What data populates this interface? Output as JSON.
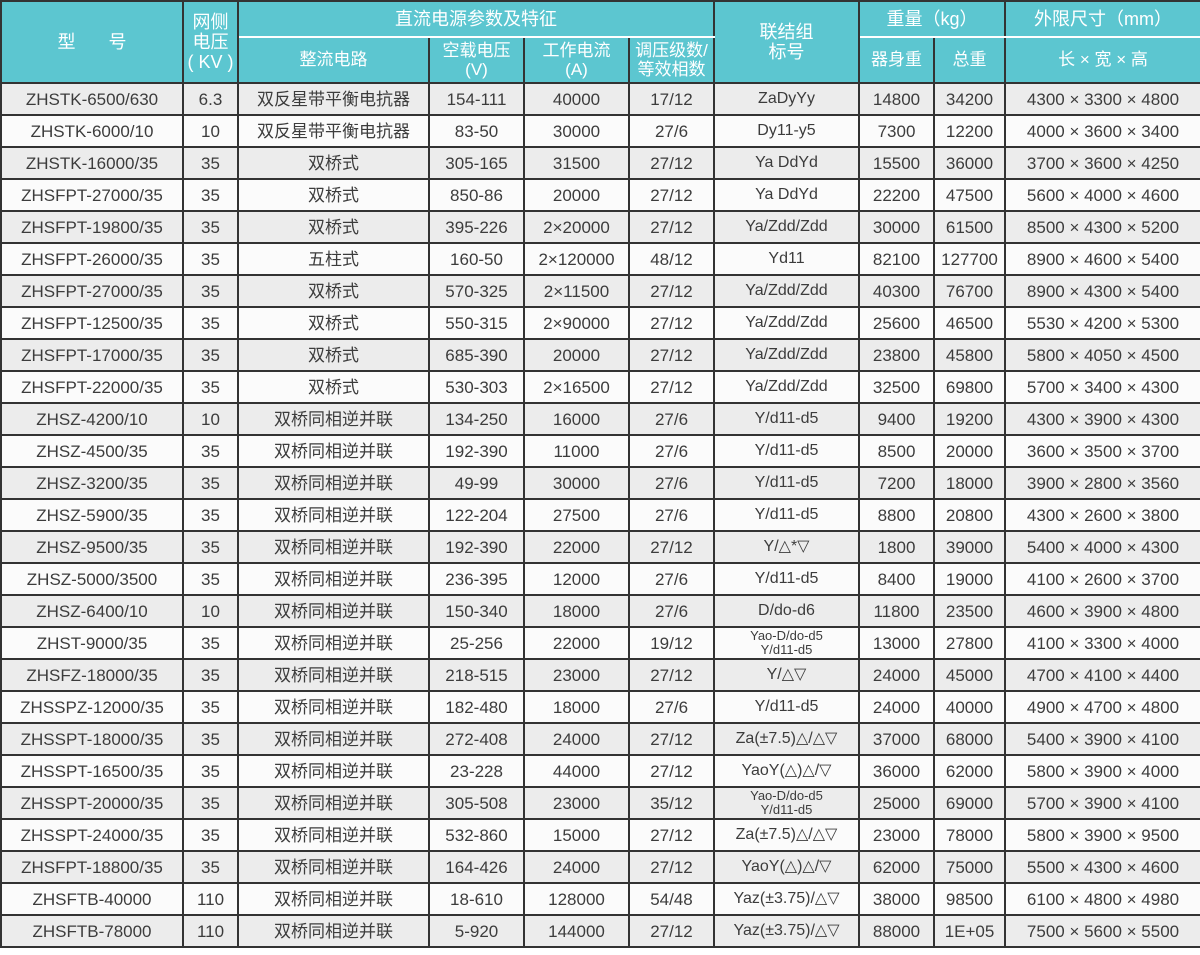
{
  "colors": {
    "header_bg": "#5cc6d0",
    "header_text": "#ffffff",
    "border": "#333333",
    "row_odd_bg": "#ececec",
    "row_even_bg": "#fbfbfb",
    "cell_text": "#3c3c3c"
  },
  "headers": {
    "model": "型  号",
    "grid_voltage": "网侧\n电压\n( KV )",
    "dc_params_group": "直流电源参数及特征",
    "rectifier": "整流电路",
    "noload_voltage": "空载电压\n(V)",
    "working_current": "工作电流\n(A)",
    "regulation": "调压级数/\n等效相数",
    "connection": "联结组\n标号",
    "weight_group": "重量（kg）",
    "body_weight": "器身重",
    "total_weight": "总重",
    "dimensions_group": "外限尺寸（mm）",
    "dimensions": "长 × 宽 × 高"
  },
  "column_keys": [
    "model",
    "grid-voltage",
    "rectifier-circuit",
    "noload-voltage",
    "working-current",
    "regulation-stages",
    "connection",
    "body-weight",
    "total-weight",
    "dimensions"
  ],
  "rows": [
    [
      "ZHSTK-6500/630",
      "6.3",
      "双反星带平衡电抗器",
      "154-111",
      "40000",
      "17/12",
      "ZaDyYy",
      "14800",
      "34200",
      "4300 × 3300 × 4800"
    ],
    [
      "ZHSTK-6000/10",
      "10",
      "双反星带平衡电抗器",
      "83-50",
      "30000",
      "27/6",
      "Dy11-y5",
      "7300",
      "12200",
      "4000 × 3600 × 3400"
    ],
    [
      "ZHSTK-16000/35",
      "35",
      "双桥式",
      "305-165",
      "31500",
      "27/12",
      "Ya DdYd",
      "15500",
      "36000",
      "3700 × 3600 × 4250"
    ],
    [
      "ZHSFPT-27000/35",
      "35",
      "双桥式",
      "850-86",
      "20000",
      "27/12",
      "Ya DdYd",
      "22200",
      "47500",
      "5600 × 4000 × 4600"
    ],
    [
      "ZHSFPT-19800/35",
      "35",
      "双桥式",
      "395-226",
      "2×20000",
      "27/12",
      "Ya/Zdd/Zdd",
      "30000",
      "61500",
      "8500 × 4300 × 5200"
    ],
    [
      "ZHSFPT-26000/35",
      "35",
      "五柱式",
      "160-50",
      "2×120000",
      "48/12",
      "Yd11",
      "82100",
      "127700",
      "8900 × 4600 × 5400"
    ],
    [
      "ZHSFPT-27000/35",
      "35",
      "双桥式",
      "570-325",
      "2×11500",
      "27/12",
      "Ya/Zdd/Zdd",
      "40300",
      "76700",
      "8900 × 4300 × 5400"
    ],
    [
      "ZHSFPT-12500/35",
      "35",
      "双桥式",
      "550-315",
      "2×90000",
      "27/12",
      "Ya/Zdd/Zdd",
      "25600",
      "46500",
      "5530 × 4200 × 5300"
    ],
    [
      "ZHSFPT-17000/35",
      "35",
      "双桥式",
      "685-390",
      "20000",
      "27/12",
      "Ya/Zdd/Zdd",
      "23800",
      "45800",
      "5800 × 4050 × 4500"
    ],
    [
      "ZHSFPT-22000/35",
      "35",
      "双桥式",
      "530-303",
      "2×16500",
      "27/12",
      "Ya/Zdd/Zdd",
      "32500",
      "69800",
      "5700 × 3400 × 4300"
    ],
    [
      "ZHSZ-4200/10",
      "10",
      "双桥同相逆并联",
      "134-250",
      "16000",
      "27/6",
      "Y/d11-d5",
      "9400",
      "19200",
      "4300 × 3900 × 4300"
    ],
    [
      "ZHSZ-4500/35",
      "35",
      "双桥同相逆并联",
      "192-390",
      "11000",
      "27/6",
      "Y/d11-d5",
      "8500",
      "20000",
      "3600 × 3500 × 3700"
    ],
    [
      "ZHSZ-3200/35",
      "35",
      "双桥同相逆并联",
      "49-99",
      "30000",
      "27/6",
      "Y/d11-d5",
      "7200",
      "18000",
      "3900 × 2800 × 3560"
    ],
    [
      "ZHSZ-5900/35",
      "35",
      "双桥同相逆并联",
      "122-204",
      "27500",
      "27/6",
      "Y/d11-d5",
      "8800",
      "20800",
      "4300 × 2600 × 3800"
    ],
    [
      "ZHSZ-9500/35",
      "35",
      "双桥同相逆并联",
      "192-390",
      "22000",
      "27/12",
      "Y/△*▽",
      "1800",
      "39000",
      "5400 × 4000 × 4300"
    ],
    [
      "ZHSZ-5000/3500",
      "35",
      "双桥同相逆并联",
      "236-395",
      "12000",
      "27/6",
      "Y/d11-d5",
      "8400",
      "19000",
      "4100 × 2600 × 3700"
    ],
    [
      "ZHSZ-6400/10",
      "10",
      "双桥同相逆并联",
      "150-340",
      "18000",
      "27/6",
      "D/do-d6",
      "11800",
      "23500",
      "4600 × 3900 × 4800"
    ],
    [
      "ZHST-9000/35",
      "35",
      "双桥同相逆并联",
      "25-256",
      "22000",
      "19/12",
      "Yao-D/do-d5\nY/d11-d5",
      "13000",
      "27800",
      "4100 × 3300 × 4000"
    ],
    [
      "ZHSFZ-18000/35",
      "35",
      "双桥同相逆并联",
      "218-515",
      "23000",
      "27/12",
      "Y/△▽",
      "24000",
      "45000",
      "4700 × 4100 × 4400"
    ],
    [
      "ZHSSPZ-12000/35",
      "35",
      "双桥同相逆并联",
      "182-480",
      "18000",
      "27/6",
      "Y/d11-d5",
      "24000",
      "40000",
      "4900 × 4700 × 4800"
    ],
    [
      "ZHSSPT-18000/35",
      "35",
      "双桥同相逆并联",
      "272-408",
      "24000",
      "27/12",
      "Za(±7.5)△/△▽",
      "37000",
      "68000",
      "5400 × 3900 × 4100"
    ],
    [
      "ZHSSPT-16500/35",
      "35",
      "双桥同相逆并联",
      "23-228",
      "44000",
      "27/12",
      "YaoY(△)△/▽",
      "36000",
      "62000",
      "5800 × 3900 × 4000"
    ],
    [
      "ZHSSPT-20000/35",
      "35",
      "双桥同相逆并联",
      "305-508",
      "23000",
      "35/12",
      "Yao-D/do-d5\nY/d11-d5",
      "25000",
      "69000",
      "5700 × 3900 × 4100"
    ],
    [
      "ZHSSPT-24000/35",
      "35",
      "双桥同相逆并联",
      "532-860",
      "15000",
      "27/12",
      "Za(±7.5)△/△▽",
      "23000",
      "78000",
      "5800 × 3900 × 9500"
    ],
    [
      "ZHSFPT-18800/35",
      "35",
      "双桥同相逆并联",
      "164-426",
      "24000",
      "27/12",
      "YaoY(△)△/▽",
      "62000",
      "75000",
      "5500 × 4300 × 4600"
    ],
    [
      "ZHSFTB-40000",
      "110",
      "双桥同相逆并联",
      "18-610",
      "128000",
      "54/48",
      "Yaz(±3.75)/△▽",
      "38000",
      "98500",
      "6100 × 4800 × 4980"
    ],
    [
      "ZHSFTB-78000",
      "110",
      "双桥同相逆并联",
      "5-920",
      "144000",
      "27/12",
      "Yaz(±3.75)/△▽",
      "88000",
      "1E+05",
      "7500 × 5600 × 5500"
    ]
  ]
}
